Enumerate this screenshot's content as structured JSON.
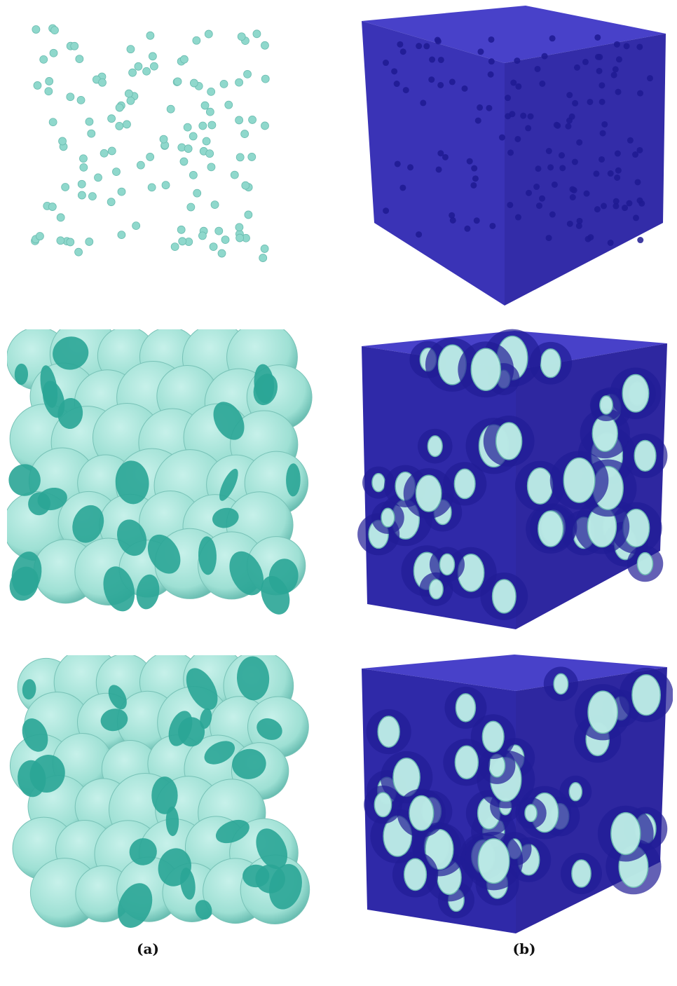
{
  "figure": {
    "captions": {
      "a": "(a)",
      "b": "(b)"
    },
    "colors": {
      "particle": "#8fd8cc",
      "particle_dark": "#2aa89a",
      "foam": "#9ee0d4",
      "foam_shadow": "#5fb7ab",
      "face_cut": "#2aa596",
      "cube_front": "#3c35b8",
      "cube_side": "#2f29a0",
      "cube_top": "#4841c9",
      "hole": "#1e1a92",
      "hole_light": "#bff0e8"
    },
    "rows": [
      "seeds",
      "foam-stage-1",
      "foam-stage-2"
    ]
  }
}
